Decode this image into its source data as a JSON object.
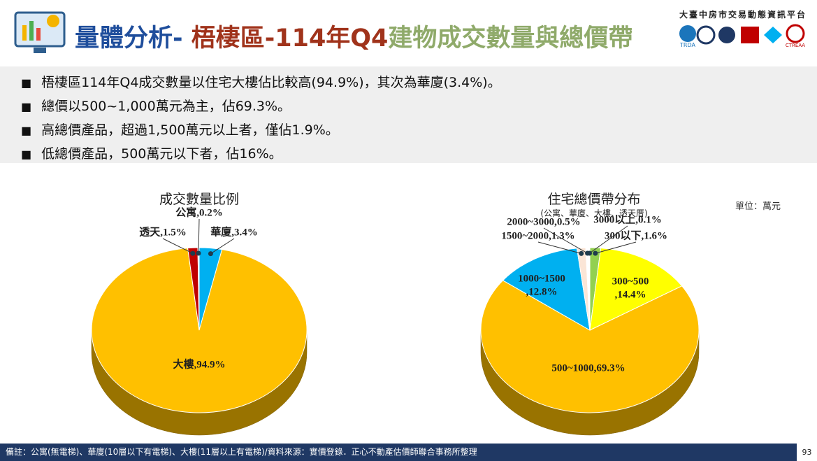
{
  "header": {
    "title_a": "量體分析-",
    "title_b": " 梧棲區-114年Q4",
    "title_c": "建物成交數量與總價帶",
    "platform": "大臺中房市交易動態資訊平台",
    "logo_a": "TRDA",
    "logo_b": "CTREAA"
  },
  "bullets": [
    "梧棲區114年Q4成交數量以住宅大樓佔比較高(94.9%)，其次為華廈(3.4%)。",
    "總價以500~1,000萬元為主，佔69.3%。",
    "高總價產品，超過1,500萬元以上者，僅佔1.9%。",
    "低總價產品，500萬元以下者，佔16%。"
  ],
  "chart_data": [
    {
      "type": "pie",
      "title": "成交數量比例",
      "values": [
        3.4,
        94.9,
        1.5,
        0.2
      ],
      "value_labels": [
        "華廈,3.4%",
        "大樓,94.9%",
        "透天,1.5%",
        "公寓,0.2%"
      ],
      "colors": [
        "#00b0f0",
        "#ffc000",
        "#c00000",
        "#f2f2f2"
      ]
    },
    {
      "type": "pie",
      "title": "住宅總價帶分布",
      "subtitle": "(公寓、華廈、大樓、透天厝)",
      "unit": "單位：萬元",
      "values": [
        1.6,
        14.4,
        69.3,
        12.8,
        1.3,
        0.5,
        0.1
      ],
      "value_labels": [
        "300以下,1.6%",
        "300~500\n,14.4%",
        "500~1000,69.3%",
        "1000~1500\n,12.8%",
        "1500~2000,1.3%",
        "2000~3000,0.5%",
        "3000以上,0.1%"
      ],
      "colors": [
        "#92d050",
        "#ffff00",
        "#ffc000",
        "#00b0f0",
        "#fbe5d6",
        "#ffffff",
        "#c55a11"
      ]
    }
  ],
  "footer": {
    "note": "備註：公寓(無電梯)、華廈(10層以下有電梯)、大樓(11層以上有電梯)/資料來源：實價登錄．正心不動產估價師聯合事務所整理",
    "page": "93"
  }
}
